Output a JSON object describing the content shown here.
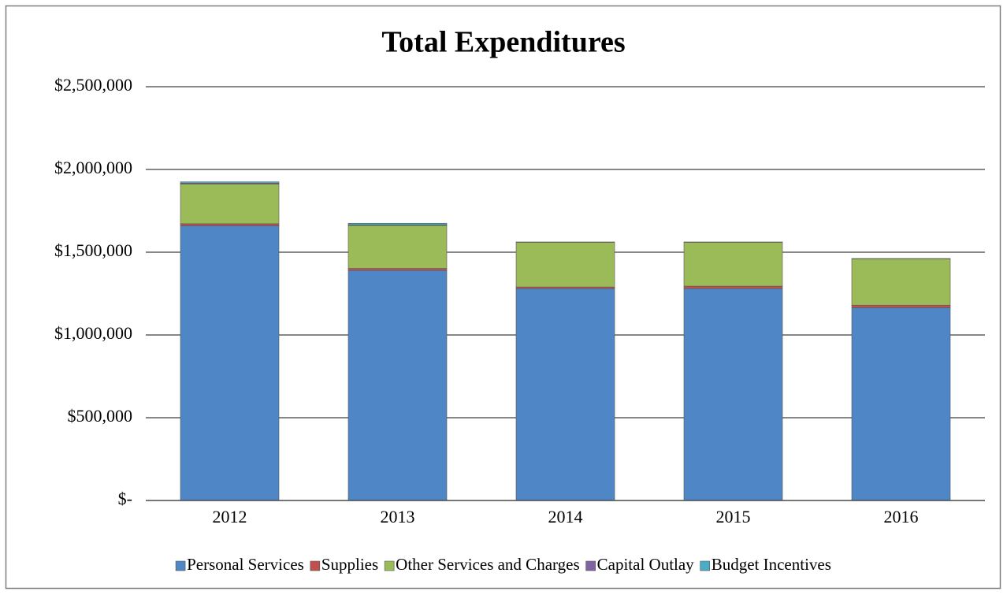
{
  "chart_data": {
    "type": "stacked_bar",
    "title": "Total Expenditures",
    "categories": [
      "2012",
      "2013",
      "2014",
      "2015",
      "2016"
    ],
    "series": [
      {
        "name": "Personal Services",
        "color": "#4f86c6",
        "values": [
          1660000,
          1390000,
          1280000,
          1280000,
          1165000
        ]
      },
      {
        "name": "Supplies",
        "color": "#c0504d",
        "values": [
          12000,
          12000,
          10000,
          15000,
          15000
        ]
      },
      {
        "name": "Other Services and Charges",
        "color": "#9bbb59",
        "values": [
          240000,
          260000,
          270000,
          265000,
          280000
        ]
      },
      {
        "name": "Capital Outlay",
        "color": "#8064a2",
        "values": [
          5000,
          3000,
          2000,
          2000,
          2000
        ]
      },
      {
        "name": "Budget Incentives",
        "color": "#4bacc6",
        "values": [
          8000,
          10000,
          0,
          0,
          0
        ]
      }
    ],
    "ylim": [
      0,
      2500000
    ],
    "yticks": [
      {
        "value": 0,
        "label": "$-"
      },
      {
        "value": 500000,
        "label": "$500,000"
      },
      {
        "value": 1000000,
        "label": "$1,000,000"
      },
      {
        "value": 1500000,
        "label": "$1,500,000"
      },
      {
        "value": 2000000,
        "label": "$2,000,000"
      },
      {
        "value": 2500000,
        "label": "$2,500,000"
      }
    ],
    "grid": true,
    "legend": "bottom"
  }
}
